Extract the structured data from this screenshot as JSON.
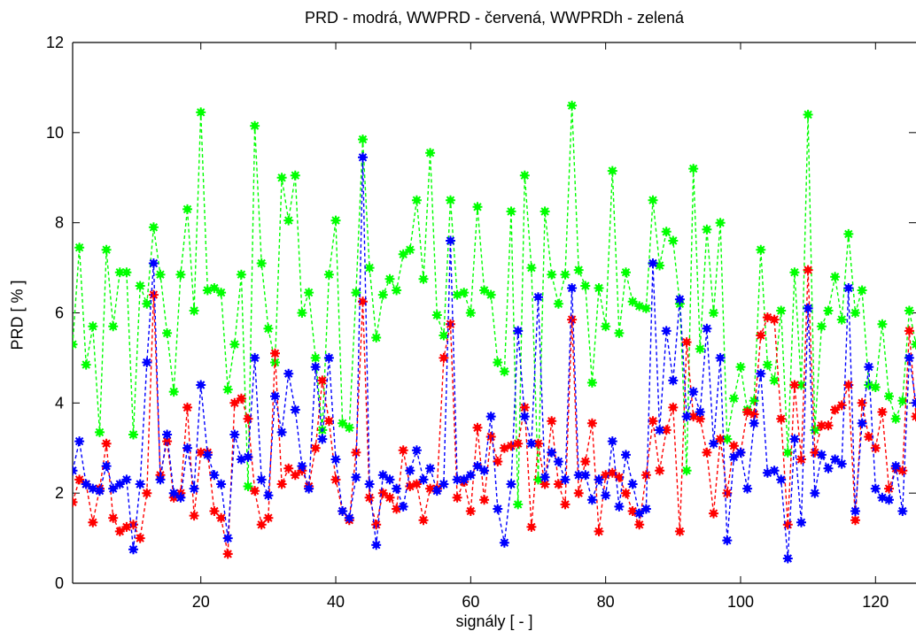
{
  "chart_data": {
    "type": "line",
    "title": "PRD - modrá, WWPRD - červená, WWPRDh - zelená",
    "xlabel": "signály [ - ]",
    "ylabel": "PRD [ % ]",
    "xlim": [
      1,
      126
    ],
    "ylim": [
      0,
      12
    ],
    "x_ticks": [
      20,
      40,
      60,
      80,
      100,
      120
    ],
    "y_ticks": [
      0,
      2,
      4,
      6,
      8,
      10,
      12
    ],
    "x_tick_labels": [
      "20",
      "40",
      "60",
      "80",
      "100",
      "120"
    ],
    "y_tick_labels": [
      "0",
      "2",
      "4",
      "6",
      "8",
      "10",
      "12"
    ],
    "grid": false,
    "line_style": "dashed",
    "marker": "asterisk",
    "x": [
      1,
      2,
      3,
      4,
      5,
      6,
      7,
      8,
      9,
      10,
      11,
      12,
      13,
      14,
      15,
      16,
      17,
      18,
      19,
      20,
      21,
      22,
      23,
      24,
      25,
      26,
      27,
      28,
      29,
      30,
      31,
      32,
      33,
      34,
      35,
      36,
      37,
      38,
      39,
      40,
      41,
      42,
      43,
      44,
      45,
      46,
      47,
      48,
      49,
      50,
      51,
      52,
      53,
      54,
      55,
      56,
      57,
      58,
      59,
      60,
      61,
      62,
      63,
      64,
      65,
      66,
      67,
      68,
      69,
      70,
      71,
      72,
      73,
      74,
      75,
      76,
      77,
      78,
      79,
      80,
      81,
      82,
      83,
      84,
      85,
      86,
      87,
      88,
      89,
      90,
      91,
      92,
      93,
      94,
      95,
      96,
      97,
      98,
      99,
      100,
      101,
      102,
      103,
      104,
      105,
      106,
      107,
      108,
      109,
      110,
      111,
      112,
      113,
      114,
      115,
      116,
      117,
      118,
      119,
      120,
      121,
      122,
      123,
      124,
      125,
      126
    ],
    "series": [
      {
        "color": "#0000ff",
        "values": [
          2.5,
          3.15,
          2.2,
          2.1,
          2.05,
          2.6,
          2.1,
          2.2,
          2.3,
          0.75,
          2.2,
          4.9,
          7.1,
          2.3,
          3.3,
          2.0,
          1.9,
          3.0,
          2.1,
          4.4,
          2.85,
          2.4,
          2.2,
          1.0,
          3.3,
          2.75,
          2.8,
          5.0,
          2.3,
          1.95,
          4.15,
          3.35,
          4.65,
          3.85,
          2.6,
          2.1,
          4.8,
          3.2,
          5.0,
          2.75,
          1.6,
          1.45,
          2.35,
          9.45,
          2.2,
          0.85,
          2.4,
          2.3,
          2.1,
          1.7,
          2.5,
          2.95,
          2.3,
          2.55,
          2.05,
          2.2,
          7.6,
          2.3,
          2.3,
          2.4,
          2.6,
          2.5,
          3.7,
          1.65,
          0.9,
          2.2,
          5.6,
          3.7,
          3.1,
          6.35,
          2.35,
          2.9,
          2.7,
          2.3,
          6.55,
          2.4,
          2.4,
          1.85,
          2.3,
          1.95,
          3.15,
          1.7,
          2.85,
          2.2,
          1.55,
          1.65,
          7.1,
          3.4,
          5.6,
          4.5,
          6.3,
          3.7,
          4.25,
          3.8,
          5.65,
          3.1,
          5.0,
          0.95,
          2.8,
          2.9,
          2.1,
          3.55,
          4.65,
          2.45,
          2.5,
          2.3,
          0.55,
          3.2,
          1.35,
          6.1,
          2.0,
          2.85,
          2.55,
          2.75,
          2.65,
          6.55,
          1.6,
          3.55,
          4.8,
          2.1,
          1.9,
          1.85,
          2.6,
          1.6,
          5.0,
          4.0
        ]
      },
      {
        "color": "#ff0000",
        "values": [
          1.8,
          2.3,
          2.2,
          1.35,
          2.1,
          3.1,
          1.45,
          1.15,
          1.25,
          1.3,
          1.0,
          2.0,
          6.4,
          2.4,
          3.15,
          1.9,
          2.0,
          3.9,
          1.5,
          2.9,
          2.9,
          1.6,
          1.45,
          0.65,
          4.0,
          4.1,
          3.65,
          2.05,
          1.3,
          1.45,
          5.1,
          2.2,
          2.55,
          2.4,
          2.5,
          2.15,
          3.0,
          4.5,
          3.6,
          2.3,
          1.6,
          1.4,
          2.9,
          6.25,
          1.9,
          1.3,
          2.0,
          1.9,
          1.65,
          2.95,
          2.15,
          2.2,
          1.4,
          2.1,
          2.1,
          5.0,
          5.75,
          1.9,
          2.25,
          1.6,
          3.45,
          1.85,
          3.25,
          2.7,
          3.0,
          3.05,
          3.1,
          3.9,
          1.25,
          3.1,
          2.2,
          3.6,
          2.2,
          1.75,
          5.85,
          2.0,
          2.7,
          3.55,
          1.15,
          2.4,
          2.45,
          2.35,
          2.0,
          1.6,
          1.3,
          2.4,
          3.6,
          2.5,
          3.4,
          3.9,
          1.15,
          5.35,
          3.7,
          3.65,
          2.9,
          1.55,
          3.2,
          2.0,
          3.05,
          2.9,
          3.8,
          3.75,
          5.5,
          5.9,
          5.85,
          3.65,
          1.3,
          4.4,
          2.75,
          6.95,
          2.9,
          3.5,
          3.5,
          3.85,
          3.95,
          4.4,
          1.4,
          4.0,
          3.25,
          3.0,
          3.8,
          2.1,
          2.55,
          2.5,
          5.6,
          3.7
        ]
      },
      {
        "color": "#00ff00",
        "values": [
          5.3,
          7.45,
          4.85,
          5.7,
          3.35,
          7.4,
          5.7,
          6.9,
          6.9,
          3.3,
          6.6,
          6.2,
          7.9,
          6.85,
          5.55,
          4.25,
          6.85,
          8.3,
          6.05,
          10.45,
          6.5,
          6.55,
          6.45,
          4.3,
          5.3,
          6.85,
          2.15,
          10.15,
          7.1,
          5.65,
          4.9,
          9.0,
          8.05,
          9.05,
          6.0,
          6.45,
          5.0,
          3.4,
          6.85,
          8.05,
          3.55,
          3.45,
          6.45,
          9.85,
          7.0,
          5.45,
          6.4,
          6.75,
          6.5,
          7.3,
          7.4,
          8.5,
          6.75,
          9.55,
          5.95,
          5.5,
          8.5,
          6.4,
          6.45,
          6.0,
          8.35,
          6.5,
          6.4,
          4.9,
          4.7,
          8.25,
          1.75,
          9.05,
          7.0,
          2.3,
          8.25,
          6.85,
          6.2,
          6.85,
          10.6,
          6.95,
          6.6,
          4.45,
          6.55,
          5.7,
          9.15,
          5.55,
          6.9,
          6.25,
          6.15,
          6.1,
          8.5,
          7.05,
          7.8,
          7.6,
          6.2,
          2.5,
          9.2,
          5.2,
          7.85,
          6.0,
          8.0,
          3.2,
          4.1,
          4.8,
          3.85,
          4.05,
          7.4,
          4.85,
          4.5,
          6.05,
          2.9,
          6.9,
          4.4,
          10.4,
          3.4,
          5.7,
          6.05,
          6.8,
          5.85,
          7.75,
          6.0,
          6.5,
          4.4,
          4.35,
          5.75,
          4.15,
          3.65,
          4.05,
          6.05,
          5.3
        ]
      }
    ]
  }
}
